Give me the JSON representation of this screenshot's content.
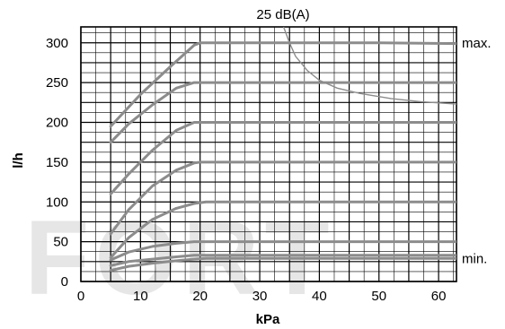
{
  "chart_data": {
    "type": "line",
    "xlabel": "kPa",
    "ylabel": "l/h",
    "xlim": [
      0,
      63
    ],
    "ylim": [
      0,
      320
    ],
    "x_ticks": [
      "0",
      "10",
      "20",
      "30",
      "40",
      "50",
      "60"
    ],
    "y_ticks": [
      "0",
      "50",
      "100",
      "150",
      "200",
      "250",
      "300"
    ],
    "grid": true,
    "watermark": "FORT",
    "colors": {
      "series": "#8c8c8c",
      "grid": "#000000",
      "watermark": "#e6e6e6"
    },
    "series": [
      {
        "x": [
          5,
          10,
          15,
          19,
          20,
          22,
          30,
          40,
          50,
          63
        ],
        "y": [
          195,
          235,
          270,
          297,
          300,
          300,
          300,
          300,
          300,
          299
        ]
      },
      {
        "x": [
          5,
          8,
          12,
          16,
          19,
          20,
          22,
          30,
          40,
          50,
          63
        ],
        "y": [
          175,
          198,
          222,
          243,
          250,
          250,
          250,
          250,
          250,
          250,
          250
        ]
      },
      {
        "x": [
          5,
          8,
          12,
          16,
          19,
          20,
          22,
          30,
          40,
          50,
          63
        ],
        "y": [
          110,
          135,
          165,
          190,
          200,
          200,
          200,
          200,
          200,
          200,
          200
        ]
      },
      {
        "x": [
          5,
          8,
          12,
          16,
          19,
          20,
          22,
          30,
          40,
          50,
          63
        ],
        "y": [
          60,
          90,
          120,
          140,
          149,
          150,
          150,
          150,
          150,
          150,
          150
        ]
      },
      {
        "x": [
          5,
          8,
          12,
          16,
          19,
          21,
          23,
          30,
          40,
          50,
          63
        ],
        "y": [
          30,
          55,
          78,
          92,
          98,
          100,
          100,
          100,
          100,
          100,
          100
        ]
      },
      {
        "x": [
          5,
          8,
          12,
          16,
          19,
          21,
          25,
          30,
          40,
          50,
          63
        ],
        "y": [
          27,
          37,
          44,
          48,
          50,
          50,
          50,
          50,
          50,
          50,
          50
        ]
      },
      {
        "x": [
          5,
          8,
          12,
          16,
          19,
          21,
          25,
          30,
          40,
          50,
          63
        ],
        "y": [
          20,
          25,
          28,
          31,
          33,
          33,
          33,
          33,
          33,
          33,
          33
        ]
      },
      {
        "x": [
          5,
          8,
          12,
          16,
          19,
          21,
          25,
          30,
          40,
          50,
          63
        ],
        "y": [
          14,
          19,
          23,
          26,
          28,
          29,
          29,
          29,
          29,
          29,
          29
        ]
      }
    ],
    "annotations": [
      {
        "text": "25 dB(A)",
        "curve": {
          "x": [
            34,
            35,
            36,
            38,
            40,
            43,
            47,
            52,
            57,
            63
          ],
          "y": [
            320,
            300,
            283,
            265,
            253,
            243,
            236,
            230,
            226,
            223
          ]
        }
      },
      {
        "text": "max.",
        "x": 63,
        "y": 300
      },
      {
        "text": "min.",
        "x": 63,
        "y": 29
      }
    ]
  }
}
